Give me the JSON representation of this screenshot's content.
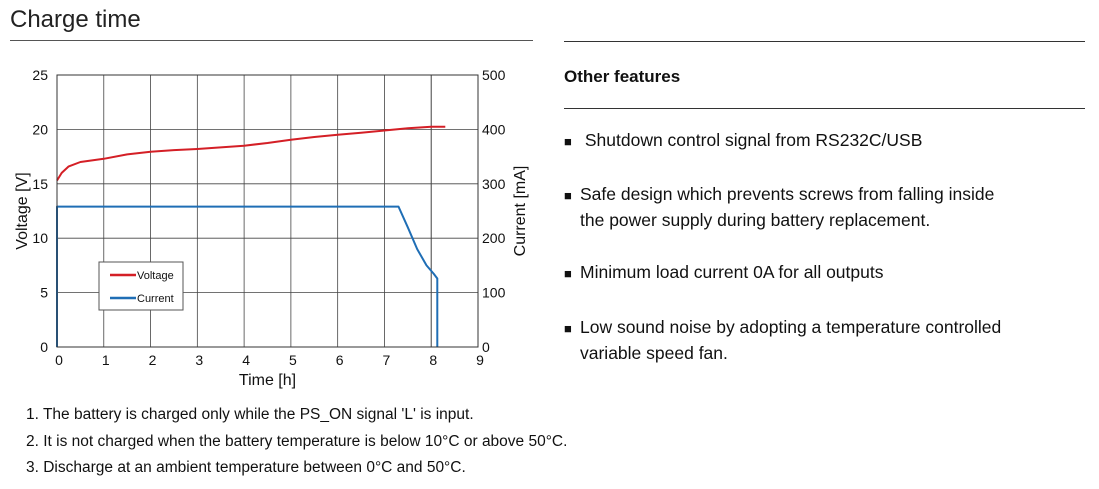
{
  "section_title": "Charge time",
  "notes": [
    "1. The battery is charged only while the PS_ON signal 'L' is input.",
    "2. It is not charged when the battery temperature is below 10°C or above 50°C.",
    "3. Discharge at an ambient temperature between 0°C and 50°C."
  ],
  "features": {
    "heading": "Other features",
    "bullet": "■",
    "items": [
      {
        "lines": [
          " Shutdown control signal from RS232C/USB"
        ]
      },
      {
        "lines": [
          "Safe design which prevents screws from falling inside",
          "the power supply during battery replacement."
        ]
      },
      {
        "lines": [
          "Minimum load current 0A for all outputs"
        ]
      },
      {
        "lines": [
          "Low sound noise by adopting a temperature controlled",
          "variable speed fan."
        ]
      }
    ]
  },
  "chart_data": {
    "type": "line",
    "title": "",
    "xlabel": "Time [h]",
    "ylabel_left": "Voltage [V]",
    "ylabel_right": "Current [mA]",
    "xlim": [
      0,
      9
    ],
    "ylim_left": [
      0,
      25
    ],
    "ylim_right": [
      0,
      500
    ],
    "x_ticks": [
      0,
      1,
      2,
      3,
      4,
      5,
      6,
      7,
      8,
      9
    ],
    "y_ticks_left": [
      0,
      5,
      10,
      15,
      20,
      25
    ],
    "y_ticks_right": [
      0,
      100,
      200,
      300,
      400,
      500
    ],
    "grid": true,
    "legend_position": "lower-left",
    "series": [
      {
        "name": "Voltage",
        "axis": "left",
        "color": "#d41f26",
        "points": [
          [
            0,
            15.3
          ],
          [
            0.1,
            16.0
          ],
          [
            0.25,
            16.6
          ],
          [
            0.5,
            17.0
          ],
          [
            1,
            17.3
          ],
          [
            1.5,
            17.7
          ],
          [
            2,
            17.95
          ],
          [
            2.5,
            18.1
          ],
          [
            3,
            18.2
          ],
          [
            3.5,
            18.35
          ],
          [
            4,
            18.5
          ],
          [
            4.5,
            18.75
          ],
          [
            5,
            19.05
          ],
          [
            5.5,
            19.3
          ],
          [
            6,
            19.5
          ],
          [
            6.5,
            19.7
          ],
          [
            7,
            19.9
          ],
          [
            7.5,
            20.1
          ],
          [
            8,
            20.25
          ],
          [
            8.3,
            20.25
          ]
        ]
      },
      {
        "name": "Current",
        "axis": "right",
        "color": "#1f6eb5",
        "points": [
          [
            0,
            0
          ],
          [
            0,
            258
          ],
          [
            7.3,
            258
          ],
          [
            7.5,
            220
          ],
          [
            7.7,
            180
          ],
          [
            7.9,
            150
          ],
          [
            8.05,
            135
          ],
          [
            8.13,
            126
          ],
          [
            8.13,
            0
          ]
        ]
      }
    ],
    "reference_lines": [
      8.0
    ]
  }
}
